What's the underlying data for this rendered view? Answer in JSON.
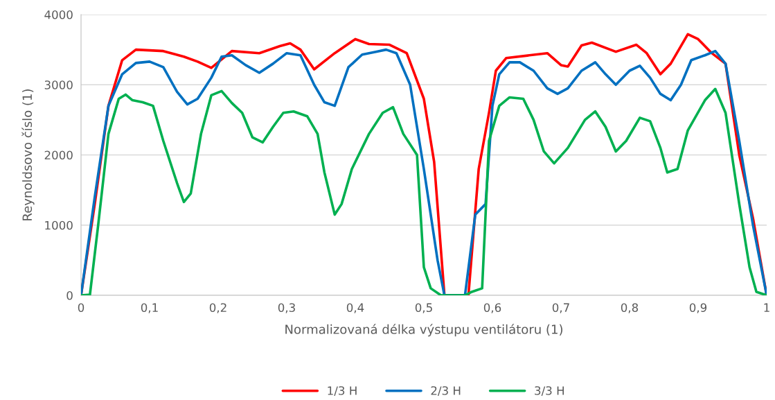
{
  "chart_data": {
    "type": "line",
    "xlabel": "Normalizovaná délka výstupu ventilátoru (1)",
    "ylabel": "Reynoldsovo číslo (1)",
    "xlim": [
      0,
      1
    ],
    "ylim": [
      0,
      4000
    ],
    "xticks": [
      0,
      {
        "value": 0.1,
        "label": "0,1"
      },
      {
        "value": 0.2,
        "label": "0,2"
      },
      {
        "value": 0.3,
        "label": "0,3"
      },
      {
        "value": 0.4,
        "label": "0,4"
      },
      {
        "value": 0.5,
        "label": "0,5"
      },
      {
        "value": 0.6,
        "label": "0,6"
      },
      {
        "value": 0.7,
        "label": "0,7"
      },
      {
        "value": 0.8,
        "label": "0,8"
      },
      {
        "value": 0.9,
        "label": "0,9"
      },
      1
    ],
    "yticks": [
      0,
      1000,
      2000,
      3000,
      4000
    ],
    "grid": "y",
    "legend": "bottom",
    "marker": "none",
    "line_style": "solid",
    "series": [
      {
        "name": "1/3 H",
        "color": "#ff0000",
        "x": [
          0,
          0.02,
          0.04,
          0.06,
          0.08,
          0.1,
          0.12,
          0.15,
          0.17,
          0.19,
          0.22,
          0.26,
          0.29,
          0.305,
          0.32,
          0.34,
          0.37,
          0.4,
          0.42,
          0.45,
          0.475,
          0.5,
          0.515,
          0.53,
          0.55,
          0.565,
          0.58,
          0.595,
          0.605,
          0.62,
          0.68,
          0.7,
          0.71,
          0.73,
          0.745,
          0.78,
          0.81,
          0.825,
          0.845,
          0.86,
          0.885,
          0.9,
          0.92,
          0.94,
          0.96,
          0.98,
          1.0
        ],
        "values": [
          0,
          1300,
          2700,
          3350,
          3500,
          3490,
          3480,
          3400,
          3330,
          3240,
          3480,
          3450,
          3550,
          3590,
          3500,
          3220,
          3450,
          3650,
          3580,
          3570,
          3450,
          2800,
          1900,
          0,
          0,
          0,
          1800,
          2600,
          3200,
          3380,
          3450,
          3280,
          3260,
          3560,
          3600,
          3470,
          3570,
          3450,
          3150,
          3300,
          3720,
          3650,
          3450,
          3300,
          2000,
          1100,
          0
        ]
      },
      {
        "name": "2/3 H",
        "color": "#0070c0",
        "x": [
          0,
          0.02,
          0.04,
          0.06,
          0.08,
          0.1,
          0.12,
          0.14,
          0.155,
          0.17,
          0.19,
          0.205,
          0.22,
          0.24,
          0.26,
          0.28,
          0.3,
          0.32,
          0.34,
          0.355,
          0.37,
          0.39,
          0.41,
          0.43,
          0.445,
          0.46,
          0.48,
          0.5,
          0.52,
          0.53,
          0.56,
          0.575,
          0.59,
          0.6,
          0.61,
          0.625,
          0.64,
          0.66,
          0.68,
          0.695,
          0.71,
          0.73,
          0.75,
          0.765,
          0.78,
          0.8,
          0.815,
          0.83,
          0.845,
          0.86,
          0.875,
          0.89,
          0.91,
          0.925,
          0.94,
          0.96,
          0.98,
          1.0
        ],
        "values": [
          0,
          1400,
          2700,
          3150,
          3310,
          3330,
          3250,
          2900,
          2720,
          2800,
          3100,
          3400,
          3420,
          3280,
          3170,
          3300,
          3450,
          3420,
          3000,
          2750,
          2700,
          3250,
          3430,
          3470,
          3500,
          3450,
          3000,
          1800,
          500,
          0,
          0,
          1150,
          1300,
          2700,
          3150,
          3320,
          3320,
          3200,
          2950,
          2870,
          2950,
          3200,
          3320,
          3150,
          3000,
          3200,
          3270,
          3100,
          2870,
          2780,
          3000,
          3350,
          3420,
          3480,
          3300,
          2200,
          1000,
          0
        ]
      },
      {
        "name": "3/3 H",
        "color": "#00b050",
        "x": [
          0,
          0.013,
          0.025,
          0.04,
          0.055,
          0.065,
          0.075,
          0.09,
          0.105,
          0.12,
          0.14,
          0.15,
          0.16,
          0.175,
          0.19,
          0.205,
          0.22,
          0.235,
          0.25,
          0.265,
          0.28,
          0.295,
          0.31,
          0.33,
          0.345,
          0.355,
          0.37,
          0.38,
          0.395,
          0.42,
          0.44,
          0.455,
          0.47,
          0.49,
          0.5,
          0.51,
          0.525,
          0.56,
          0.57,
          0.585,
          0.595,
          0.61,
          0.625,
          0.645,
          0.66,
          0.675,
          0.69,
          0.71,
          0.735,
          0.75,
          0.765,
          0.78,
          0.795,
          0.815,
          0.83,
          0.845,
          0.855,
          0.87,
          0.885,
          0.91,
          0.925,
          0.94,
          0.96,
          0.975,
          0.985,
          1.0
        ],
        "values": [
          0,
          10,
          1000,
          2300,
          2800,
          2860,
          2780,
          2750,
          2700,
          2200,
          1600,
          1330,
          1450,
          2300,
          2850,
          2910,
          2740,
          2600,
          2250,
          2180,
          2400,
          2600,
          2620,
          2550,
          2300,
          1750,
          1150,
          1300,
          1800,
          2300,
          2600,
          2680,
          2300,
          2000,
          400,
          100,
          0,
          0,
          50,
          100,
          2200,
          2700,
          2820,
          2800,
          2500,
          2050,
          1880,
          2100,
          2500,
          2620,
          2400,
          2050,
          2200,
          2530,
          2480,
          2100,
          1750,
          1800,
          2350,
          2780,
          2940,
          2600,
          1300,
          400,
          50,
          0
        ]
      }
    ]
  }
}
